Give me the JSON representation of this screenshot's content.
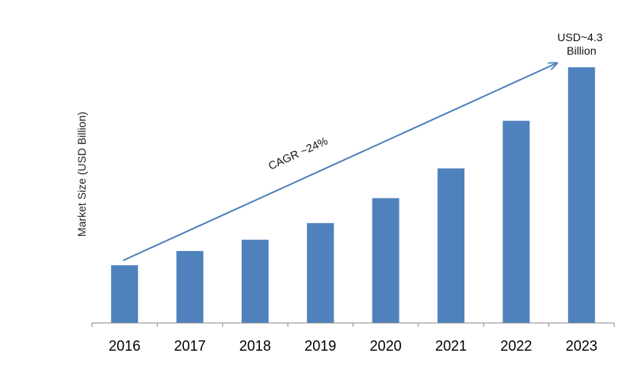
{
  "chart_data": {
    "type": "bar",
    "title": "",
    "xlabel": "",
    "ylabel": "Market Size (USD Billion)",
    "categories": [
      "2016",
      "2017",
      "2018",
      "2019",
      "2020",
      "2021",
      "2022",
      "2023"
    ],
    "values": [
      0.97,
      1.21,
      1.4,
      1.68,
      2.1,
      2.6,
      3.4,
      4.3
    ],
    "ylim": [
      0,
      4.3
    ],
    "y_ticks_shown": false,
    "grid": false,
    "legend": "none",
    "bar_color": "#4f81bd",
    "arrow_color": "#4f81bd",
    "annotations": {
      "cagr": "CAGR ~24%",
      "final_value_line1": "USD~4.3",
      "final_value_line2": "Billion"
    }
  }
}
